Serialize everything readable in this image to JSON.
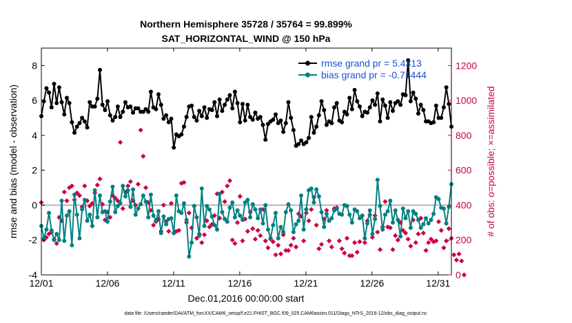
{
  "chart_data": {
    "type": "line",
    "title": "Northern Hemisphere 35728 / 35764 = 99.899%",
    "subtitle": "SAT_HORIZONTAL_WIND @ 150 hPa",
    "xlabel": "Dec.01,2016 00:00:00 start",
    "ylabel": "rmse and bias (model - observation)",
    "ylabel_right": "# of obs: o=possible; ×=assimilated",
    "xlim": [
      1,
      32
    ],
    "ylim": [
      -4,
      9
    ],
    "ylim_right": [
      0,
      1300
    ],
    "x_ticks": [
      1,
      6,
      11,
      16,
      21,
      26,
      31
    ],
    "x_tick_labels": [
      "12/01",
      "12/06",
      "12/11",
      "12/16",
      "12/21",
      "12/26",
      "12/31"
    ],
    "y_ticks": [
      -4,
      -2,
      0,
      2,
      4,
      6,
      8
    ],
    "y_tick_labels": [
      "-4",
      "-2",
      "0",
      "2",
      "4",
      "6",
      "8"
    ],
    "y_ticks_right": [
      0,
      200,
      400,
      600,
      800,
      1000,
      1200
    ],
    "y_tick_labels_right": [
      "0",
      "200",
      "400",
      "600",
      "800",
      "1000",
      "1200"
    ],
    "legend_position": "top-right",
    "series": [
      {
        "name": "rmse grand pr = 5.4313",
        "color": "#000000",
        "axis": "left",
        "values": [
          5.1,
          5.95,
          6.7,
          6.45,
          5.6,
          6.95,
          5.85,
          6.75,
          5.9,
          5.2,
          6.15,
          5.85,
          4.75,
          4.15,
          4.5,
          4.7,
          5.0,
          4.8,
          4.45,
          5.9,
          5.65,
          5.65,
          6.1,
          7.75,
          5.75,
          5.45,
          5.95,
          5.15,
          4.85,
          5.05,
          5.65,
          5.05,
          5.35,
          5.9,
          5.6,
          5.65,
          5.3,
          5.55,
          5.55,
          5.35,
          5.35,
          5.5,
          5.35,
          6.5,
          5.6,
          5.5,
          6.35,
          5.75,
          4.95,
          5.15,
          4.75,
          4.95,
          3.3,
          4.05,
          3.95,
          4.05,
          4.5,
          5.05,
          5.65,
          5.7,
          5.05,
          4.85,
          5.4,
          5.1,
          5.6,
          5.0,
          5.5,
          5.45,
          5.9,
          5.1,
          6.05,
          5.4,
          5.75,
          6.05,
          6.3,
          5.55,
          6.5,
          5.85,
          4.75,
          5.8,
          4.85,
          5.75,
          5.05,
          4.9,
          5.3,
          4.95,
          5.05,
          4.6,
          3.75,
          4.65,
          4.8,
          4.9,
          5.2,
          4.7,
          4.85,
          4.2,
          4.7,
          5.9,
          5.0,
          4.3,
          3.4,
          3.5,
          3.7,
          3.5,
          3.6,
          3.85,
          5.05,
          4.15,
          4.5,
          5.15,
          5.95,
          5.45,
          4.6,
          4.8,
          4.7,
          5.6,
          5.85,
          4.85,
          4.75,
          5.35,
          5.2,
          6.15,
          5.5,
          6.6,
          5.95,
          5.65,
          5.1,
          5.35,
          5.3,
          5.6,
          6.0,
          5.75,
          6.4,
          4.8,
          6.05,
          5.7,
          5.0,
          5.9,
          5.4,
          5.85,
          5.95,
          5.75,
          6.35,
          6.3,
          8.3,
          5.95,
          6.45,
          6.1,
          5.25,
          5.75,
          5.45,
          4.8,
          4.8,
          4.7,
          4.75,
          5.7,
          5.0,
          5.0,
          5.6,
          6.75,
          5.8,
          4.5
        ]
      },
      {
        "name": "bias grand pr = -0.71444",
        "color": "#008080",
        "axis": "left",
        "values": [
          -1.2,
          -1.9,
          -1.4,
          -0.45,
          -1.45,
          -2.0,
          -1.65,
          -2.0,
          0.25,
          -2.05,
          -0.6,
          -0.35,
          -2.3,
          0.6,
          -0.55,
          -1.9,
          -0.25,
          0.3,
          -0.9,
          -0.55,
          -1.2,
          0.85,
          -0.7,
          0.55,
          -0.4,
          -0.35,
          -0.95,
          0.2,
          1.05,
          -0.4,
          -0.05,
          0.1,
          1.1,
          0.5,
          0.85,
          -0.1,
          0.9,
          -0.55,
          -0.2,
          0.05,
          0.55,
          0.2,
          -0.7,
          0.6,
          -0.6,
          -0.9,
          -0.35,
          -1.6,
          -0.65,
          -1.1,
          -0.8,
          -0.75,
          -1.6,
          0.55,
          -0.35,
          -0.45,
          0.1,
          -0.85,
          -2.95,
          -2.15,
          -0.05,
          -0.7,
          -1.75,
          0.95,
          -1.2,
          -0.05,
          -0.25,
          -0.65,
          -1.15,
          -1.4,
          0.65,
          -0.4,
          -0.8,
          -0.95,
          -0.15,
          0.15,
          -0.7,
          -0.3,
          -0.6,
          -0.85,
          0.15,
          0.3,
          -0.7,
          0.05,
          -0.25,
          -0.75,
          -0.25,
          -1.05,
          0.0,
          -1.4,
          -1.9,
          -1.15,
          -0.45,
          -1.9,
          -1.25,
          -1.55,
          -0.4,
          0.05,
          -0.3,
          -1.55,
          -1.1,
          -0.9,
          0.55,
          -1.4,
          -0.25,
          0.85,
          0.95,
          0.15,
          0.9,
          0.5,
          -0.4,
          -1.25,
          -0.5,
          -0.9,
          -0.75,
          -0.3,
          -0.2,
          -0.5,
          -0.55,
          0.0,
          -0.05,
          -0.55,
          -1.0,
          -0.25,
          -0.35,
          -0.75,
          -0.6,
          -1.9,
          -1.05,
          -0.3,
          -1.65,
          -0.8,
          1.45,
          -0.05,
          -1.4,
          -0.55,
          -0.35,
          0.25,
          -1.0,
          -0.3,
          -0.85,
          -1.8,
          -0.2,
          -0.75,
          -0.35,
          -1.3,
          -0.35,
          -0.5,
          -0.85,
          -1.3,
          -1.1,
          -0.75,
          -1.05,
          -0.85,
          -0.5,
          0.45,
          0.35,
          -0.15,
          -0.2,
          -1.05,
          -0.1,
          1.2
        ]
      },
      {
        "name": "assimilated obs count",
        "color": "#cc0044",
        "axis": "right",
        "values": [
          415,
          200,
          215,
          235,
          245,
          205,
          180,
          330,
          310,
          475,
          425,
          500,
          510,
          430,
          470,
          455,
          390,
          510,
          425,
          395,
          410,
          470,
          515,
          550,
          405,
          315,
          360,
          330,
          455,
          440,
          425,
          760,
          380,
          475,
          510,
          535,
          425,
          400,
          520,
          830,
          680,
          500,
          415,
          370,
          285,
          305,
          320,
          250,
          400,
          305,
          250,
          410,
          240,
          250,
          255,
          525,
          530,
          300,
          355,
          270,
          395,
          210,
          235,
          185,
          230,
          310,
          275,
          290,
          340,
          465,
          325,
          475,
          420,
          510,
          540,
          200,
          180,
          300,
          450,
          195,
          320,
          250,
          360,
          265,
          205,
          255,
          225,
          375,
          195,
          155,
          205,
          190,
          115,
          170,
          120,
          230,
          140,
          140,
          170,
          210,
          160,
          350,
          335,
          195,
          355,
          310,
          375,
          445,
          285,
          150,
          175,
          320,
          370,
          195,
          160,
          380,
          385,
          195,
          150,
          125,
          210,
          110,
          110,
          185,
          130,
          190,
          340,
          185,
          310,
          345,
          215,
          340,
          245,
          145,
          275,
          420,
          275,
          270,
          145,
          225,
          200,
          300,
          255,
          240,
          205,
          165,
          315,
          185,
          235,
          325,
          240,
          140,
          185,
          205,
          190,
          195,
          305,
          255,
          155,
          195,
          265,
          210,
          115,
          85,
          120,
          80,
          0
        ]
      }
    ],
    "zero_line": 0
  },
  "footer": "data file: /Users/raeder/DAI/ATM_forcXX/CAM6_setup/f.e21.FHIST_BGC.f09_025.CAM6assim.011/Diags_NTrS_2016-12/obs_diag_output.nc"
}
